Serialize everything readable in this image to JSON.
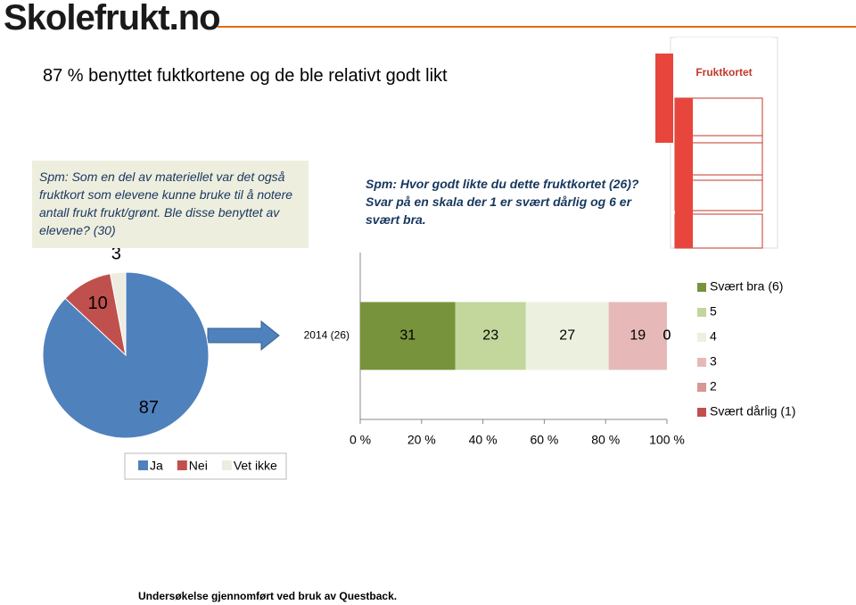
{
  "logo": "Skolefrukt.no",
  "title": "87 % benyttet fuktkortene og de ble relativt godt likt",
  "footer": "Undersøkelse gjennomført ved bruk av Questback.",
  "chart_data": [
    {
      "type": "pie",
      "title": "Spm: Som en del av materiellet var det også fruktkort som elevene kunne bruke til å notere antall frukt frukt/grønt. Ble disse benyttet av elevene? (30)",
      "categories": [
        "Ja",
        "Nei",
        "Vet ikke"
      ],
      "values": [
        87,
        10,
        3
      ],
      "colors": [
        "#4f81bd",
        "#c0504d",
        "#eeece1"
      ],
      "legend": "bottom"
    },
    {
      "type": "stacked-bar-horizontal",
      "title": "Spm: Hvor godt likte du dette fruktkortet (26)? Svar på en skala der 1 er svært dårlig og 6 er svært bra.",
      "categories": [
        "2014 (26)"
      ],
      "series": [
        {
          "name": "Svært bra (6)",
          "color": "#77933c",
          "values": [
            31
          ]
        },
        {
          "name": "5",
          "color": "#c3d69b",
          "values": [
            23
          ]
        },
        {
          "name": "4",
          "color": "#ebf1de",
          "values": [
            27
          ]
        },
        {
          "name": "3",
          "color": "#e6b9b8",
          "values": [
            19
          ]
        },
        {
          "name": "2",
          "color": "#d99694",
          "values": [
            0
          ]
        },
        {
          "name": "Svært dårlig (1)",
          "color": "#c0504d",
          "values": [
            0
          ]
        }
      ],
      "xlim": [
        0,
        100
      ],
      "xticks": [
        {
          "value": 0,
          "label": "0 %"
        },
        {
          "value": 20,
          "label": "20 %"
        },
        {
          "value": 40,
          "label": "40 %"
        },
        {
          "value": 60,
          "label": "60 %"
        },
        {
          "value": 80,
          "label": "80 %"
        },
        {
          "value": 100,
          "label": "100 %"
        }
      ],
      "legend": "right"
    }
  ]
}
